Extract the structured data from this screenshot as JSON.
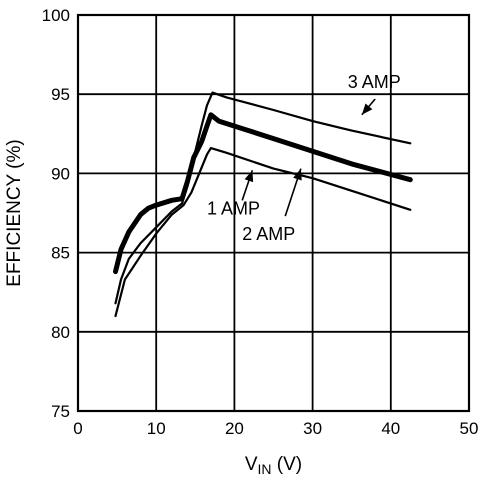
{
  "chart_data": {
    "type": "line",
    "xlabel": "V",
    "xlabel_sub": "IN",
    "xlabel_unit": " (V)",
    "ylabel": "EFFICIENCY (%)",
    "xlim": [
      0,
      50
    ],
    "ylim": [
      75,
      100
    ],
    "xticks": [
      "0",
      "10",
      "20",
      "30",
      "40",
      "50"
    ],
    "yticks": [
      "75",
      "80",
      "85",
      "90",
      "95",
      "100"
    ],
    "grid": true,
    "series": [
      {
        "name": "1 AMP",
        "points": [
          [
            4.8,
            81.0
          ],
          [
            6,
            83.3
          ],
          [
            8,
            84.8
          ],
          [
            10,
            86.2
          ],
          [
            12,
            87.4
          ],
          [
            13.5,
            88.0
          ],
          [
            14.5,
            88.8
          ],
          [
            15.5,
            90.0
          ],
          [
            16.5,
            91.2
          ],
          [
            17,
            91.6
          ],
          [
            19,
            91.3
          ],
          [
            25,
            90.3
          ],
          [
            30,
            89.7
          ],
          [
            35,
            88.9
          ],
          [
            42.5,
            87.7
          ]
        ],
        "stroke_width": 2.2
      },
      {
        "name": "2 AMP",
        "points": [
          [
            4.8,
            83.8
          ],
          [
            5.5,
            85.2
          ],
          [
            6.5,
            86.3
          ],
          [
            8,
            87.4
          ],
          [
            9,
            87.8
          ],
          [
            10,
            88.0
          ],
          [
            12,
            88.3
          ],
          [
            13.3,
            88.4
          ],
          [
            14,
            89.5
          ],
          [
            14.8,
            91.0
          ],
          [
            15.8,
            92.0
          ],
          [
            16.5,
            93.0
          ],
          [
            17,
            93.7
          ],
          [
            18,
            93.3
          ],
          [
            25,
            92.2
          ],
          [
            30,
            91.4
          ],
          [
            35,
            90.6
          ],
          [
            42.5,
            89.6
          ]
        ],
        "stroke_width": 5
      },
      {
        "name": "3 AMP",
        "points": [
          [
            4.8,
            81.8
          ],
          [
            5.5,
            83.3
          ],
          [
            6.5,
            84.6
          ],
          [
            8,
            85.6
          ],
          [
            10,
            86.6
          ],
          [
            12,
            87.6
          ],
          [
            13.3,
            88.1
          ],
          [
            14,
            89.2
          ],
          [
            14.8,
            91.0
          ],
          [
            15.8,
            93.0
          ],
          [
            16.5,
            94.3
          ],
          [
            17.2,
            95.1
          ],
          [
            19,
            94.8
          ],
          [
            25,
            94.0
          ],
          [
            30,
            93.3
          ],
          [
            35,
            92.7
          ],
          [
            42.5,
            91.9
          ]
        ],
        "stroke_width": 2.2
      }
    ],
    "annotations": [
      {
        "label": "3 AMP",
        "text_at": [
          34.5,
          95.4
        ],
        "arrow_from": [
          38.0,
          94.7
        ],
        "arrow_to": [
          36.3,
          93.7
        ]
      },
      {
        "label": "1 AMP",
        "text_at": [
          16.5,
          87.4
        ],
        "arrow_from": [
          21.0,
          88.3
        ],
        "arrow_to": [
          22.3,
          90.2
        ]
      },
      {
        "label": "2 AMP",
        "text_at": [
          21.0,
          85.8
        ],
        "arrow_from": [
          26.5,
          87.3
        ],
        "arrow_to": [
          28.5,
          90.3
        ]
      }
    ]
  }
}
